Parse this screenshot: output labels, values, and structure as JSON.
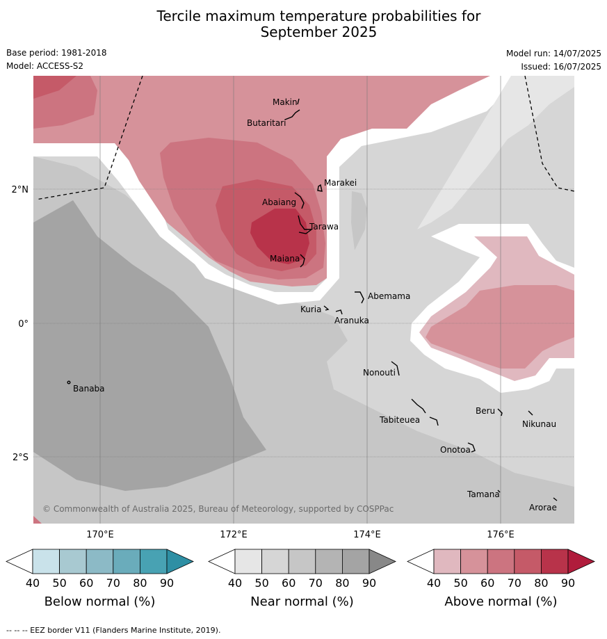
{
  "header": {
    "title_line1": "Tercile maximum temperature probabilities for",
    "title_line2": "September 2025",
    "base_period": "Base period: 1981-2018",
    "model": "Model: ACCESS-S2",
    "model_run": "Model run: 14/07/2025",
    "issued": "Issued: 16/07/2025"
  },
  "axes": {
    "lat_labels": [
      "2°N",
      "0°",
      "2°S"
    ],
    "lon_labels": [
      "170°E",
      "172°E",
      "174°E",
      "176°E"
    ]
  },
  "places": [
    {
      "name": "Makin"
    },
    {
      "name": "Butaritari"
    },
    {
      "name": "Marakei"
    },
    {
      "name": "Abaiang"
    },
    {
      "name": "Tarawa"
    },
    {
      "name": "Maiana"
    },
    {
      "name": "Abemama"
    },
    {
      "name": "Kuria"
    },
    {
      "name": "Aranuka"
    },
    {
      "name": "Nonouti"
    },
    {
      "name": "Banaba"
    },
    {
      "name": "Tabiteuea"
    },
    {
      "name": "Beru"
    },
    {
      "name": "Nikunau"
    },
    {
      "name": "Onotoa"
    },
    {
      "name": "Tamana"
    },
    {
      "name": "Arorae"
    }
  ],
  "copyright": "© Commonwealth of Australia 2025, Bureau of Meteorology, supported by COSPPac",
  "colorbars": [
    {
      "title": "Below normal (%)",
      "ticks": [
        "40",
        "50",
        "60",
        "70",
        "80",
        "90"
      ],
      "colors": [
        "#ffffff",
        "#c9e2ea",
        "#a8c9d1",
        "#8cbac6",
        "#6aacbb",
        "#48a2b3",
        "#2e8fa4"
      ]
    },
    {
      "title": "Near normal (%)",
      "ticks": [
        "40",
        "50",
        "60",
        "70",
        "80",
        "90"
      ],
      "colors": [
        "#ffffff",
        "#e6e6e6",
        "#d6d6d6",
        "#c6c6c6",
        "#b4b4b4",
        "#a4a4a4",
        "#888888"
      ]
    },
    {
      "title": "Above normal (%)",
      "ticks": [
        "40",
        "50",
        "60",
        "70",
        "80",
        "90"
      ],
      "colors": [
        "#ffffff",
        "#e0b8bf",
        "#d6929a",
        "#cc7480",
        "#c55a68",
        "#b8334a",
        "#b01c3c"
      ]
    }
  ],
  "footnote": "--  --  -- EEZ border V11 (Flanders Marine Institute, 2019)."
}
